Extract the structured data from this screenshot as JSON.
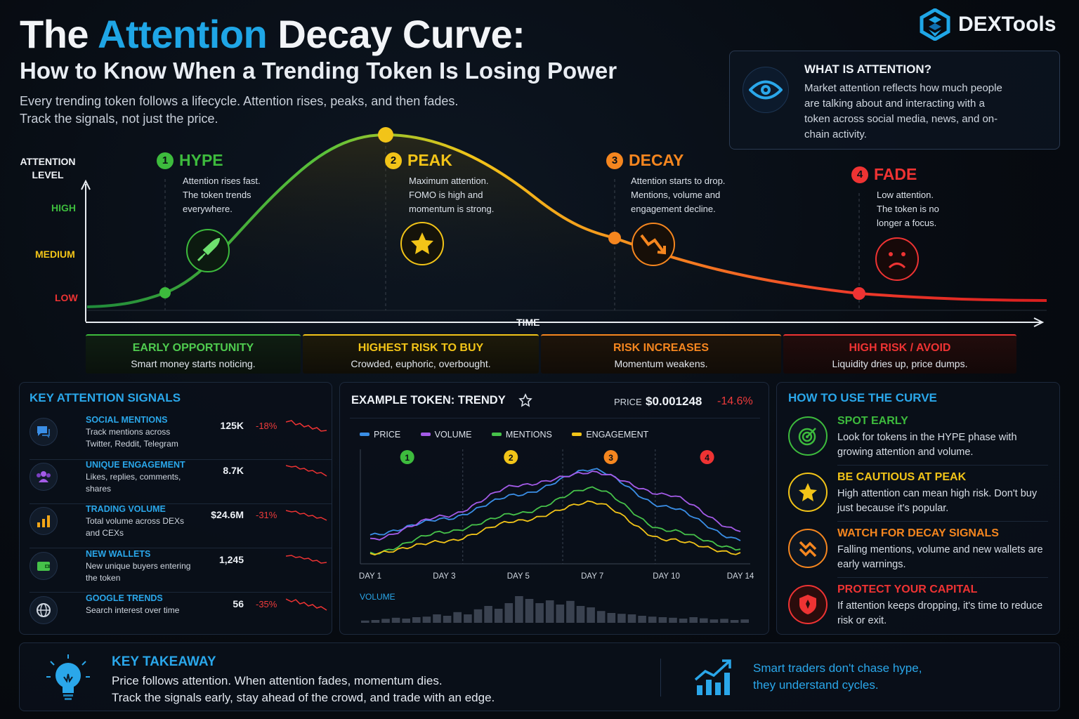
{
  "header": {
    "title_part1": "The ",
    "title_accent": "Attention",
    "title_part2": " Decay Curve:",
    "subtitle": "How to Know When a Trending Token Is Losing Power",
    "intro_line1": "Every trending token follows a lifecycle. Attention rises, peaks, and then fades.",
    "intro_line2": "Track the signals, not just the price."
  },
  "logo": {
    "text": "DEXTools",
    "icon": "dextools-logo-icon"
  },
  "what_is_attention": {
    "title": "WHAT IS ATTENTION?",
    "text": "Market attention reflects how much people are talking about and interacting with a token across social media, news, and on-chain activity.",
    "icon": "eye-icon"
  },
  "curve": {
    "y_axis_label_1": "ATTENTION",
    "y_axis_label_2": "LEVEL",
    "x_axis_label": "TIME",
    "levels": {
      "high": "HIGH",
      "medium": "MEDIUM",
      "low": "LOW"
    },
    "phases": [
      {
        "num": "1",
        "name": "HYPE",
        "color": "#3dbb3d",
        "desc_1": "Attention rises fast.",
        "desc_2": "The token trends",
        "desc_3": "everywhere.",
        "icon": "rocket-icon"
      },
      {
        "num": "2",
        "name": "PEAK",
        "color": "#f2c418",
        "desc_1": "Maximum attention.",
        "desc_2": "FOMO is high and",
        "desc_3": "momentum is strong.",
        "icon": "star-icon"
      },
      {
        "num": "3",
        "name": "DECAY",
        "color": "#f5861f",
        "desc_1": "Attention starts to drop.",
        "desc_2": "Mentions, volume and",
        "desc_3": "engagement decline.",
        "icon": "trend-down-icon"
      },
      {
        "num": "4",
        "name": "FADE",
        "color": "#ee3333",
        "desc_1": "Low attention.",
        "desc_2": "The token is no",
        "desc_3": "longer a focus.",
        "icon": "sad-face-icon"
      }
    ]
  },
  "bands": [
    {
      "title": "EARLY OPPORTUNITY",
      "text": "Smart money starts noticing.",
      "color": "#3dbb3d"
    },
    {
      "title": "HIGHEST RISK TO BUY",
      "text": "Crowded, euphoric, overbought.",
      "color": "#f2c418"
    },
    {
      "title": "RISK INCREASES",
      "text": "Momentum weakens.",
      "color": "#f5861f"
    },
    {
      "title": "HIGH RISK / AVOID",
      "text": "Liquidity dries up, price dumps.",
      "color": "#ee3333"
    }
  ],
  "signals": {
    "title": "KEY ATTENTION SIGNALS",
    "rows": [
      {
        "name": "SOCIAL MENTIONS",
        "desc": "Track mentions across Twitter, Reddit, Telegram",
        "value": "125K",
        "change": "-18%",
        "icon": "chat-icon"
      },
      {
        "name": "UNIQUE ENGAGEMENT",
        "desc": "Likes, replies, comments, shares",
        "value": "8.7K",
        "change": "",
        "icon": "users-icon"
      },
      {
        "name": "TRADING VOLUME",
        "desc": "Total volume across DEXs and CEXs",
        "value": "$24.6M",
        "change": "-31%",
        "icon": "bar-chart-icon"
      },
      {
        "name": "NEW WALLETS",
        "desc": "New unique buyers entering the token",
        "value": "1,245",
        "change": "",
        "icon": "wallet-icon"
      },
      {
        "name": "GOOGLE TRENDS",
        "desc": "Search interest over time",
        "value": "56",
        "change": "-35%",
        "icon": "globe-icon"
      }
    ]
  },
  "example": {
    "title": "EXAMPLE TOKEN: TRENDY",
    "price_label": "PRICE",
    "price": "$0.001248",
    "change": "-14.6%",
    "legend": [
      "PRICE",
      "VOLUME",
      "MENTIONS",
      "ENGAGEMENT"
    ],
    "legend_colors": [
      "#3a8ee6",
      "#a45be8",
      "#46c24a",
      "#f2c418"
    ],
    "volume_label": "VOLUME",
    "phase_markers": [
      "1",
      "2",
      "3",
      "4"
    ]
  },
  "chart_data": {
    "type": "line",
    "x": [
      "DAY 1",
      "DAY 3",
      "DAY 5",
      "DAY 7",
      "DAY 10",
      "DAY 14"
    ],
    "series": [
      {
        "name": "PRICE",
        "values": [
          0.25,
          0.42,
          0.68,
          0.95,
          0.55,
          0.2
        ]
      },
      {
        "name": "VOLUME",
        "values": [
          0.2,
          0.45,
          0.78,
          0.92,
          0.68,
          0.3
        ]
      },
      {
        "name": "MENTIONS",
        "values": [
          0.05,
          0.28,
          0.48,
          0.75,
          0.3,
          0.1
        ]
      },
      {
        "name": "ENGAGEMENT",
        "values": [
          0.05,
          0.18,
          0.4,
          0.6,
          0.2,
          0.05
        ]
      }
    ],
    "volume_bars": [
      0.08,
      0.1,
      0.14,
      0.18,
      0.15,
      0.2,
      0.22,
      0.3,
      0.25,
      0.38,
      0.3,
      0.48,
      0.6,
      0.5,
      0.7,
      0.95,
      0.85,
      0.7,
      0.8,
      0.65,
      0.78,
      0.6,
      0.55,
      0.42,
      0.35,
      0.32,
      0.3,
      0.25,
      0.22,
      0.2,
      0.18,
      0.15,
      0.2,
      0.16,
      0.12,
      0.14,
      0.1,
      0.12
    ]
  },
  "how_to_use": {
    "title": "HOW TO USE THE CURVE",
    "rows": [
      {
        "name": "SPOT EARLY",
        "desc": "Look for tokens in the HYPE phase with growing attention and volume.",
        "color": "#3dbb3d",
        "icon": "target-icon"
      },
      {
        "name": "BE CAUTIOUS AT PEAK",
        "desc": "High attention can mean high risk. Don't buy just because it's popular.",
        "color": "#f2c418",
        "icon": "star-icon"
      },
      {
        "name": "WATCH FOR DECAY SIGNALS",
        "desc": "Falling mentions, volume and new wallets are early warnings.",
        "color": "#f5861f",
        "icon": "decay-arrows-icon"
      },
      {
        "name": "PROTECT YOUR CAPITAL",
        "desc": "If attention keeps dropping, it's time to reduce risk or exit.",
        "color": "#ee3333",
        "icon": "shield-icon"
      }
    ]
  },
  "takeaway": {
    "title": "KEY TAKEAWAY",
    "line1": "Price follows attention. When attention fades, momentum dies.",
    "line2": "Track the signals early, stay ahead of the crowd, and trade with an edge.",
    "quote1": "Smart traders don't chase hype,",
    "quote2": "they understand cycles.",
    "icon": "lightbulb-icon",
    "quote_icon": "growth-chart-icon"
  }
}
